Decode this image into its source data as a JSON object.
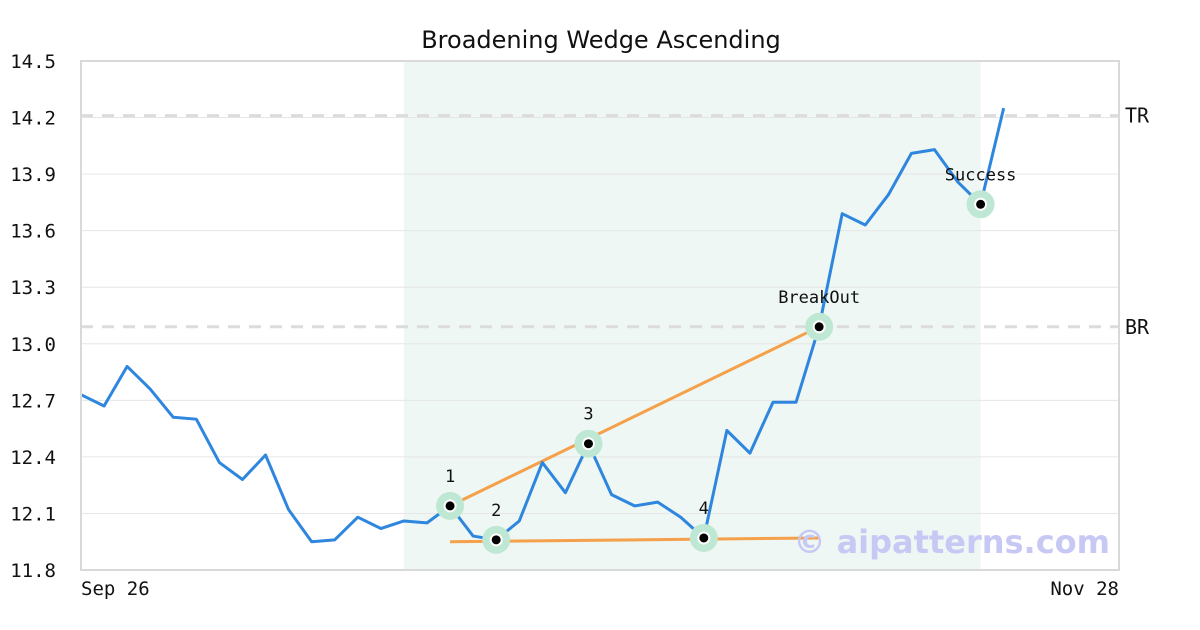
{
  "chart_data": {
    "type": "line",
    "title": "Broadening Wedge Ascending",
    "xlabel": "",
    "ylabel": "",
    "ylim": [
      11.8,
      14.5
    ],
    "y_ticks": [
      "14.5",
      "14.2",
      "13.9",
      "13.6",
      "13.3",
      "13.0",
      "12.7",
      "12.4",
      "12.1",
      "11.8"
    ],
    "x_tick_labels": {
      "start": "Sep 26",
      "end": "Nov 28"
    },
    "grid": true,
    "x_range": [
      0,
      45
    ],
    "series": [
      {
        "color": "#2e86de",
        "x": [
          0,
          1,
          2,
          3,
          4,
          5,
          6,
          7,
          8,
          9,
          10,
          11,
          12,
          13,
          14,
          15,
          16,
          17,
          18,
          19,
          20,
          21,
          22,
          23,
          24,
          25,
          26,
          27,
          28,
          29,
          30,
          31,
          32,
          33,
          34,
          35,
          36,
          37,
          38,
          39,
          40
        ],
        "values": [
          12.73,
          12.67,
          12.88,
          12.76,
          12.61,
          12.6,
          12.37,
          12.28,
          12.41,
          12.12,
          11.95,
          11.96,
          12.08,
          12.02,
          12.06,
          12.05,
          12.14,
          11.98,
          11.96,
          12.06,
          12.37,
          12.21,
          12.47,
          12.2,
          12.14,
          12.16,
          12.08,
          11.97,
          12.54,
          12.42,
          12.69,
          12.69,
          13.09,
          13.69,
          13.63,
          13.79,
          14.01,
          14.03,
          13.86,
          13.74,
          14.25
        ]
      }
    ],
    "highlight_region": {
      "x_start": 14,
      "x_end": 39,
      "color": "#eef7f3"
    },
    "trend_lines": [
      {
        "color": "#f5a04a",
        "x1": 16,
        "y1": 12.14,
        "x2": 32,
        "y2": 13.09
      },
      {
        "color": "#f5a04a",
        "x1": 16,
        "y1": 11.95,
        "x2": 32,
        "y2": 11.97
      }
    ],
    "levels": [
      {
        "label": "TR",
        "value": 14.21
      },
      {
        "label": "BR",
        "value": 13.09
      }
    ],
    "markers": [
      {
        "label": "1",
        "x": 16,
        "y": 12.14,
        "label_pos": "above"
      },
      {
        "label": "2",
        "x": 18,
        "y": 11.96,
        "label_pos": "above"
      },
      {
        "label": "3",
        "x": 22,
        "y": 12.47,
        "label_pos": "above"
      },
      {
        "label": "4",
        "x": 27,
        "y": 11.97,
        "label_pos": "above"
      },
      {
        "label": "BreakOut",
        "x": 32,
        "y": 13.09,
        "label_pos": "above"
      },
      {
        "label": "Success",
        "x": 39,
        "y": 13.74,
        "label_pos": "above"
      }
    ],
    "watermark": "© aipatterns.com"
  }
}
